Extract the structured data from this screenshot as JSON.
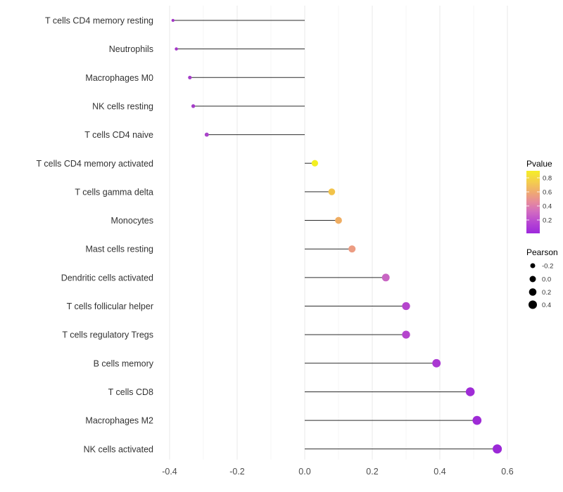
{
  "figure": {
    "background": "#ffffff"
  },
  "chart_data": {
    "type": "scatter",
    "variant": "lollipop",
    "title": "",
    "xlabel": "",
    "ylabel": "",
    "xlim": [
      -0.455,
      0.645
    ],
    "x_ticks": [
      -0.4,
      -0.2,
      0.0,
      0.2,
      0.4,
      0.6
    ],
    "x_tick_labels": [
      "-0.4",
      "-0.2",
      "0.0",
      "0.2",
      "0.4",
      "0.6"
    ],
    "x_minor_ticks": [
      -0.3,
      -0.1,
      0.1,
      0.3,
      0.5
    ],
    "grid": {
      "vertical_major": true,
      "vertical_minor": true,
      "horizontal": false
    },
    "categories": [
      "T cells CD4 memory resting",
      "Neutrophils",
      "Macrophages M0",
      "NK cells resting",
      "T cells CD4 naive",
      "T cells CD4 memory activated",
      "T cells gamma delta",
      "Monocytes",
      "Mast cells resting",
      "Dendritic cells activated",
      "T cells follicular helper",
      "T cells regulatory  Tregs",
      "B cells memory",
      "T cells CD8",
      "Macrophages M2",
      "NK cells activated"
    ],
    "series": [
      {
        "name": "Pearson",
        "values": [
          -0.39,
          -0.38,
          -0.34,
          -0.33,
          -0.29,
          0.03,
          0.08,
          0.1,
          0.14,
          0.24,
          0.3,
          0.3,
          0.39,
          0.49,
          0.51,
          0.57
        ]
      }
    ],
    "points": [
      {
        "label": "T cells CD4 memory resting",
        "pearson": -0.39,
        "color": "#a436c8"
      },
      {
        "label": "Neutrophils",
        "pearson": -0.38,
        "color": "#a436c8"
      },
      {
        "label": "Macrophages M0",
        "pearson": -0.34,
        "color": "#a43cc8"
      },
      {
        "label": "NK cells resting",
        "pearson": -0.33,
        "color": "#a43cc8"
      },
      {
        "label": "T cells CD4 naive",
        "pearson": -0.29,
        "color": "#aa44ca"
      },
      {
        "label": "T cells CD4 memory activated",
        "pearson": 0.03,
        "color": "#f3ef21"
      },
      {
        "label": "T cells gamma delta",
        "pearson": 0.08,
        "color": "#f2c349"
      },
      {
        "label": "Monocytes",
        "pearson": 0.1,
        "color": "#efad62"
      },
      {
        "label": "Mast cells resting",
        "pearson": 0.14,
        "color": "#ec9c82"
      },
      {
        "label": "Dendritic cells activated",
        "pearson": 0.24,
        "color": "#c865c3"
      },
      {
        "label": "T cells follicular helper",
        "pearson": 0.3,
        "color": "#b545cd"
      },
      {
        "label": "T cells regulatory  Tregs",
        "pearson": 0.3,
        "color": "#b545cd"
      },
      {
        "label": "B cells memory",
        "pearson": 0.39,
        "color": "#aa38d2"
      },
      {
        "label": "T cells CD8",
        "pearson": 0.49,
        "color": "#9f2cd6"
      },
      {
        "label": "Macrophages M2",
        "pearson": 0.51,
        "color": "#9e2bd6"
      },
      {
        "label": "NK cells activated",
        "pearson": 0.57,
        "color": "#9b29d7"
      }
    ],
    "legend_color": {
      "title": "Pvalue",
      "position": "right",
      "tick_labels": [
        "0.8",
        "0.6",
        "0.4",
        "0.2"
      ],
      "gradient_stops": [
        {
          "offset": 0.0,
          "color": "#f5ee27"
        },
        {
          "offset": 0.18,
          "color": "#f4cd4e"
        },
        {
          "offset": 0.35,
          "color": "#efa873"
        },
        {
          "offset": 0.5,
          "color": "#e68a9c"
        },
        {
          "offset": 0.65,
          "color": "#d26cc0"
        },
        {
          "offset": 0.82,
          "color": "#b847d2"
        },
        {
          "offset": 1.0,
          "color": "#9d28dc"
        }
      ]
    },
    "legend_size": {
      "title": "Pearson",
      "position": "right",
      "tick_labels": [
        "-0.2",
        "0.0",
        "0.2",
        "0.4"
      ],
      "tick_values": [
        -0.2,
        0.0,
        0.2,
        0.4
      ],
      "dot_color": "#000000"
    },
    "size_scale": {
      "ref": -0.2,
      "d2_at_ref": 49,
      "d2_per_unit": 158.33
    },
    "style": {
      "stem_color": "#2b2b2b",
      "grid_major_color": "#e9e9e9",
      "grid_minor_color": "#f5f5f5",
      "axis_text_color": "#4d4d4d",
      "category_text_color": "#333333",
      "legend_text_color": "#333333"
    }
  }
}
